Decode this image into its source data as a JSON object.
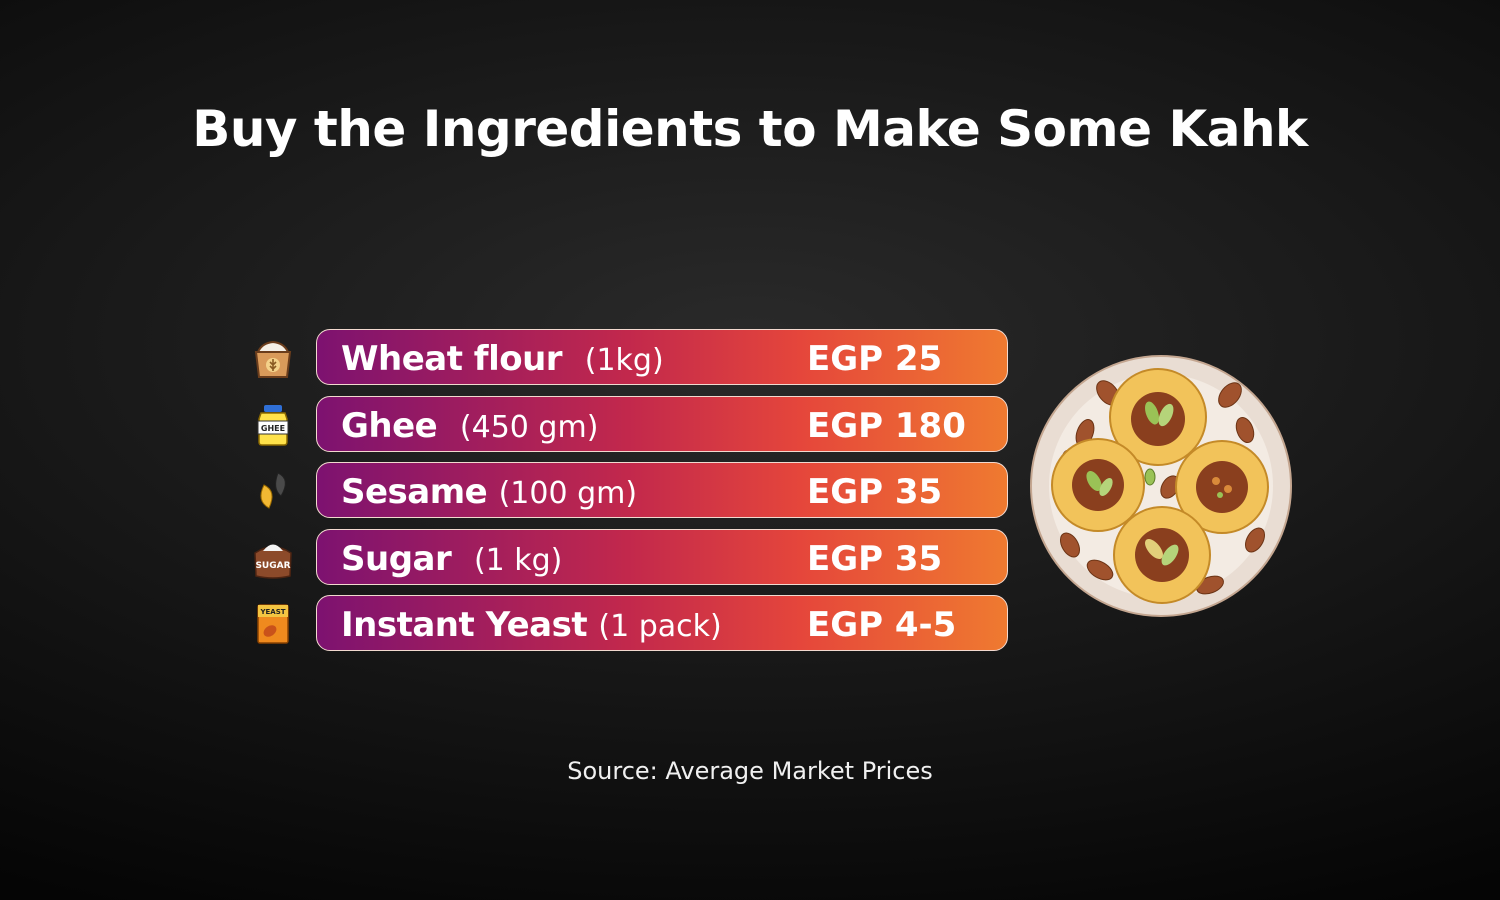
{
  "title": "Buy the Ingredients to Make Some Kahk",
  "items": [
    {
      "name": "Wheat flour",
      "qty": "(1kg)",
      "price": "EGP 25",
      "icon": "flour-sack-icon"
    },
    {
      "name": "Ghee",
      "qty": "(450 gm)",
      "price": "EGP 180",
      "icon": "ghee-jar-icon",
      "icon_label": "GHEE"
    },
    {
      "name": "Sesame",
      "qty": "(100 gm)",
      "price": "EGP 35",
      "icon": "sesame-seeds-icon"
    },
    {
      "name": "Sugar",
      "qty": "(1 kg)",
      "price": "EGP 35",
      "icon": "sugar-sack-icon",
      "icon_label": "SUGAR"
    },
    {
      "name": "Instant Yeast",
      "qty": "(1 pack)",
      "price": "EGP 4-5",
      "icon": "yeast-pack-icon",
      "icon_label": "YEAST"
    }
  ],
  "source": "Source: Average Market Prices",
  "image": "kahk-plate-icon",
  "colors": {
    "bar_start": "#7d1270",
    "bar_mid": "#c2284c",
    "bar_end": "#ef7a30",
    "background": "#161616"
  }
}
